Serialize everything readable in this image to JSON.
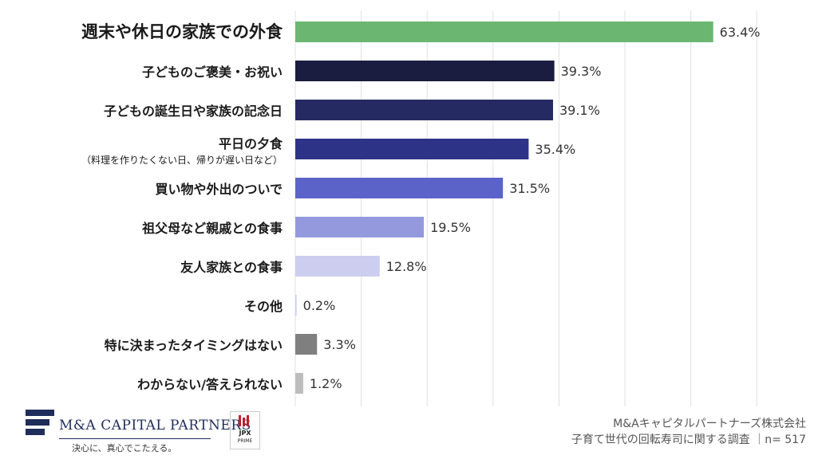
{
  "chart_data": {
    "type": "bar",
    "orientation": "horizontal",
    "categories": [
      "週末や休日の家族での外食",
      "子どものご褒美・お祝い",
      "子どもの誕生日や家族の記念日",
      "平日の夕食",
      "買い物や外出のついで",
      "祖父母など親戚との食事",
      "友人家族との食事",
      "その他",
      "特に決まったタイミングはない",
      "わからない/答えられない"
    ],
    "category_notes": [
      "",
      "",
      "",
      "（料理を作りたくない日、帰りが遅い日など）",
      "",
      "",
      "",
      "",
      "",
      ""
    ],
    "values": [
      63.4,
      39.3,
      39.1,
      35.4,
      31.5,
      19.5,
      12.8,
      0.2,
      3.3,
      1.2
    ],
    "value_labels": [
      "63.4%",
      "39.3%",
      "39.1%",
      "35.4%",
      "31.5%",
      "19.5%",
      "12.8%",
      "0.2%",
      "3.3%",
      "1.2%"
    ],
    "colors": [
      "#6bb670",
      "#1a1c40",
      "#252a63",
      "#2d3487",
      "#5b63c8",
      "#9499de",
      "#cccdef",
      "#cccdef",
      "#7f7f7f",
      "#bdbdbd"
    ],
    "highlight_color": "#e07b45",
    "gridline_color": "#e0e0e0",
    "xlim": [
      0,
      70
    ],
    "gridline_step": 10,
    "grid": true,
    "title": "",
    "xlabel": "",
    "ylabel": ""
  },
  "footer": {
    "company_logo_text": "M&A CAPITAL PARTNERS",
    "company_tagline": "決心に、真心でこたえる。",
    "exchange_logo_text": "JPX",
    "exchange_logo_sub": "PRIME",
    "source_line1": "M&Aキャピタルパートナーズ株式会社",
    "source_line2": "子育て世代の回転寿司に関する調査 ｜n= 517"
  }
}
